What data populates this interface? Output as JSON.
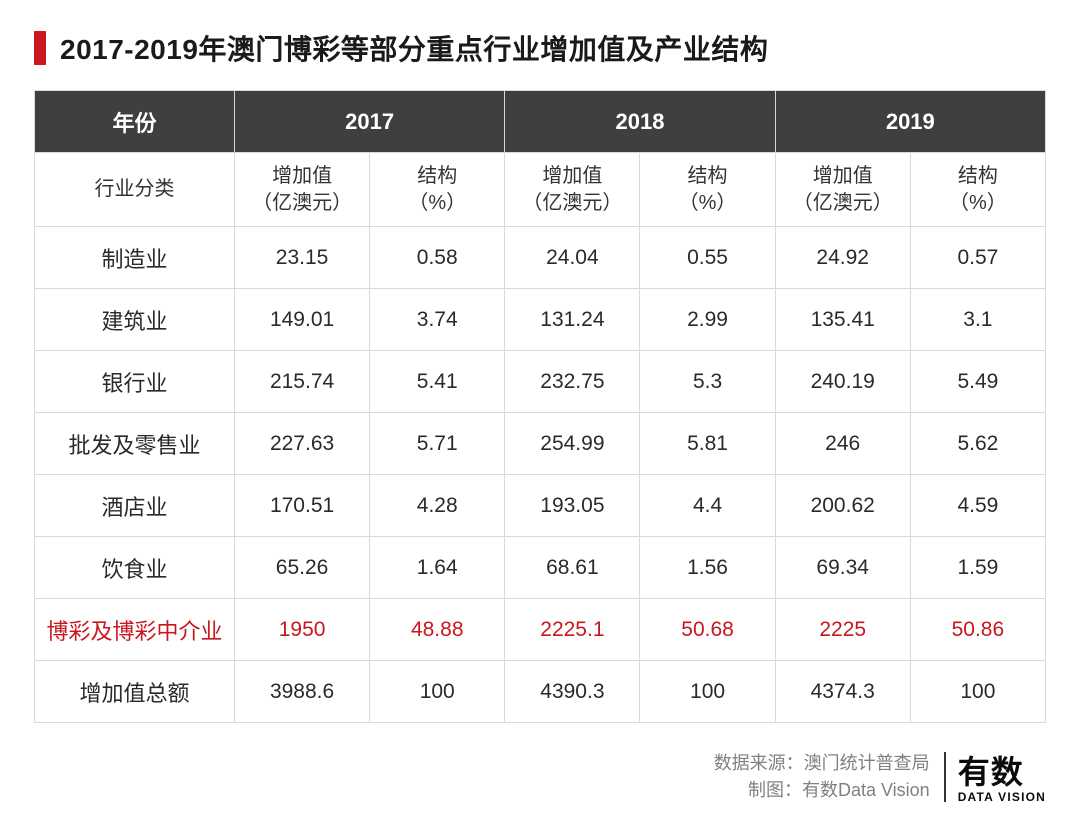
{
  "title": "2017-2019年澳门博彩等部分重点行业增加值及产业结构",
  "colors": {
    "accent_red": "#c8171e",
    "header_bg": "#3f3f3f",
    "header_text": "#ffffff",
    "border": "#d9d9d9",
    "body_text": "#2a2a2a",
    "footer_text": "#808080",
    "logo_text": "#0b0b0b"
  },
  "table": {
    "header_row1": {
      "year_label": "年份",
      "years": [
        "2017",
        "2018",
        "2019"
      ]
    },
    "header_row2": {
      "category_label": "行业分类",
      "value_label": "增加值\n（亿澳元）",
      "struct_label": "结构\n（%）"
    },
    "rows": [
      {
        "label": "制造业",
        "v2017": "23.15",
        "s2017": "0.58",
        "v2018": "24.04",
        "s2018": "0.55",
        "v2019": "24.92",
        "s2019": "0.57",
        "highlight": false
      },
      {
        "label": "建筑业",
        "v2017": "149.01",
        "s2017": "3.74",
        "v2018": "131.24",
        "s2018": "2.99",
        "v2019": "135.41",
        "s2019": "3.1",
        "highlight": false
      },
      {
        "label": "银行业",
        "v2017": "215.74",
        "s2017": "5.41",
        "v2018": "232.75",
        "s2018": "5.3",
        "v2019": "240.19",
        "s2019": "5.49",
        "highlight": false
      },
      {
        "label": "批发及零售业",
        "v2017": "227.63",
        "s2017": "5.71",
        "v2018": "254.99",
        "s2018": "5.81",
        "v2019": "246",
        "s2019": "5.62",
        "highlight": false
      },
      {
        "label": "酒店业",
        "v2017": "170.51",
        "s2017": "4.28",
        "v2018": "193.05",
        "s2018": "4.4",
        "v2019": "200.62",
        "s2019": "4.59",
        "highlight": false
      },
      {
        "label": "饮食业",
        "v2017": "65.26",
        "s2017": "1.64",
        "v2018": "68.61",
        "s2018": "1.56",
        "v2019": "69.34",
        "s2019": "1.59",
        "highlight": false
      },
      {
        "label": "博彩及博彩中介业",
        "v2017": "1950",
        "s2017": "48.88",
        "v2018": "2225.1",
        "s2018": "50.68",
        "v2019": "2225",
        "s2019": "50.86",
        "highlight": true
      },
      {
        "label": "增加值总额",
        "v2017": "3988.6",
        "s2017": "100",
        "v2018": "4390.3",
        "s2018": "100",
        "v2019": "4374.3",
        "s2019": "100",
        "highlight": false
      }
    ]
  },
  "footer": {
    "source_label": "数据来源：",
    "source_value": "澳门统计普查局",
    "chart_label": "制图：",
    "chart_value": "有数Data Vision",
    "logo_cn": "有数",
    "logo_en": "DATA VISION"
  }
}
